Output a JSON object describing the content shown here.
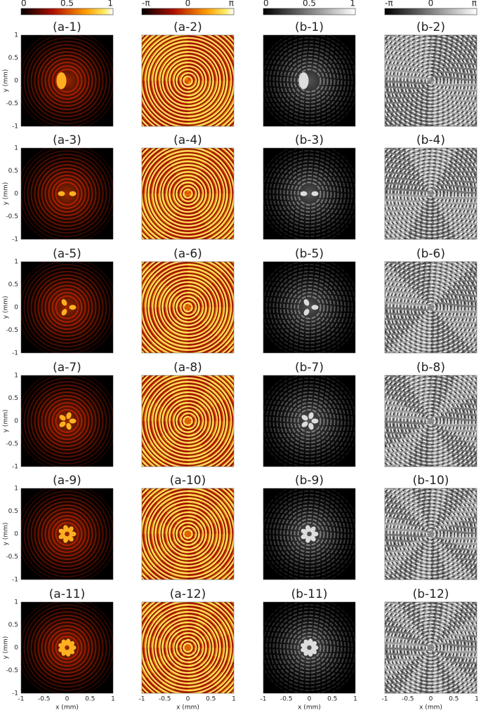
{
  "colorbars": [
    {
      "ticks": [
        "0",
        "0.5",
        "1"
      ]
    },
    {
      "ticks": [
        "-π",
        "0",
        "π"
      ]
    },
    {
      "ticks": [
        "0",
        "0.5",
        "1"
      ]
    },
    {
      "ticks": [
        "-π",
        "0",
        "π"
      ]
    }
  ],
  "panels": [
    "(a-1)",
    "(a-2)",
    "(b-1)",
    "(b-2)",
    "(a-3)",
    "(a-4)",
    "(b-3)",
    "(b-4)",
    "(a-5)",
    "(a-6)",
    "(b-5)",
    "(b-6)",
    "(a-7)",
    "(a-8)",
    "(b-7)",
    "(b-8)",
    "(a-9)",
    "(a-10)",
    "(b-9)",
    "(b-10)",
    "(a-11)",
    "(a-12)",
    "(b-11)",
    "(b-12)"
  ],
  "y_axis": {
    "label": "y (mm)",
    "ticks": [
      "1",
      "0.5",
      "0",
      "-0.5",
      "-1"
    ]
  },
  "x_axis": {
    "label": "x (mm)",
    "ticks": [
      "-1",
      "-0.5",
      "0",
      "0.5",
      "1"
    ]
  }
}
